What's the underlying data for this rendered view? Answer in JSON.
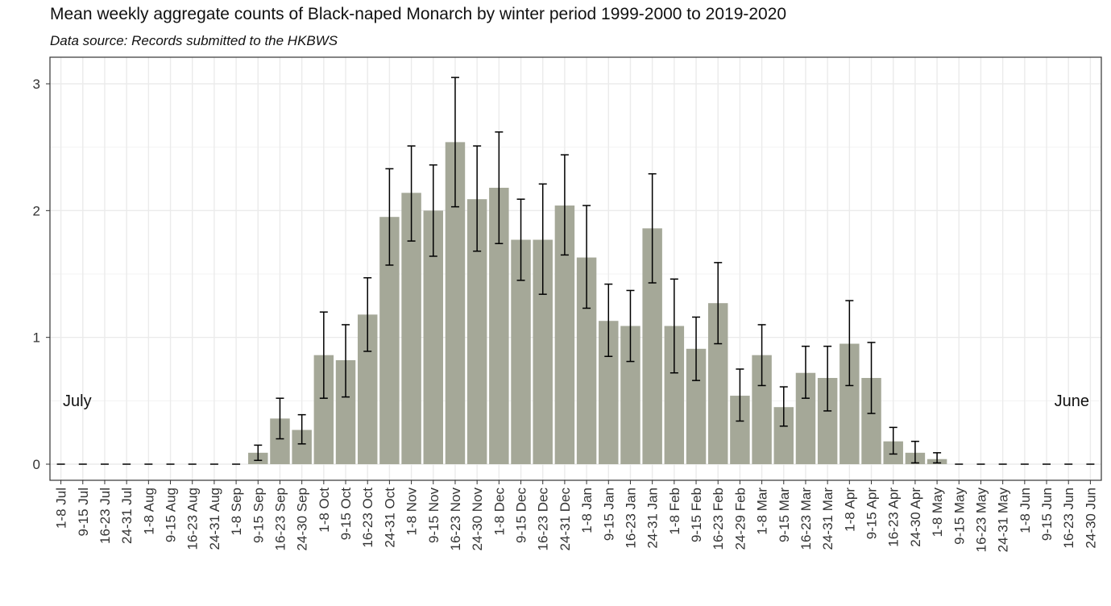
{
  "chart_data": {
    "type": "bar",
    "title": "Mean weekly aggregate counts of Black-naped Monarch by winter period 1999-2000 to 2019-2020",
    "subtitle": "Data source: Records submitted to the HKBWS",
    "xlabel": "",
    "ylabel": "",
    "ylim": [
      0,
      3.2
    ],
    "yticks": [
      0,
      1,
      2,
      3
    ],
    "grid": true,
    "categories": [
      "1-8 Jul",
      "9-15 Jul",
      "16-23 Jul",
      "24-31 Jul",
      "1-8 Aug",
      "9-15 Aug",
      "16-23 Aug",
      "24-31 Aug",
      "1-8 Sep",
      "9-15 Sep",
      "16-23 Sep",
      "24-30 Sep",
      "1-8 Oct",
      "9-15 Oct",
      "16-23 Oct",
      "24-31 Oct",
      "1-8 Nov",
      "9-15 Nov",
      "16-23 Nov",
      "24-30 Nov",
      "1-8 Dec",
      "9-15 Dec",
      "16-23 Dec",
      "24-31 Dec",
      "1-8 Jan",
      "9-15 Jan",
      "16-23 Jan",
      "24-31 Jan",
      "1-8 Feb",
      "9-15 Feb",
      "16-23 Feb",
      "24-29 Feb",
      "1-8 Mar",
      "9-15 Mar",
      "16-23 Mar",
      "24-31 Mar",
      "1-8 Apr",
      "9-15 Apr",
      "16-23 Apr",
      "24-30 Apr",
      "1-8 May",
      "9-15 May",
      "16-23 May",
      "24-31 May",
      "1-8 Jun",
      "9-15 Jun",
      "16-23 Jun",
      "24-30 Jun"
    ],
    "values": [
      0,
      0,
      0,
      0,
      0,
      0,
      0,
      0,
      0,
      0.09,
      0.36,
      0.27,
      0.86,
      0.82,
      1.18,
      1.95,
      2.14,
      2.0,
      2.54,
      2.09,
      2.18,
      1.77,
      1.77,
      2.04,
      1.63,
      1.13,
      1.09,
      1.86,
      1.09,
      0.91,
      1.27,
      0.54,
      0.86,
      0.45,
      0.72,
      0.68,
      0.95,
      0.68,
      0.18,
      0.09,
      0.04,
      0,
      0,
      0,
      0,
      0,
      0,
      0
    ],
    "error_low": [
      0,
      0,
      0,
      0,
      0,
      0,
      0,
      0,
      0,
      0.03,
      0.2,
      0.16,
      0.52,
      0.53,
      0.89,
      1.57,
      1.76,
      1.64,
      2.03,
      1.68,
      1.74,
      1.45,
      1.34,
      1.65,
      1.23,
      0.85,
      0.81,
      1.43,
      0.72,
      0.66,
      0.95,
      0.34,
      0.62,
      0.3,
      0.52,
      0.42,
      0.62,
      0.4,
      0.08,
      0.01,
      0.01,
      0,
      0,
      0,
      0,
      0,
      0,
      0
    ],
    "error_high": [
      0,
      0,
      0,
      0,
      0,
      0,
      0,
      0,
      0,
      0.15,
      0.52,
      0.39,
      1.2,
      1.1,
      1.47,
      2.33,
      2.51,
      2.36,
      3.05,
      2.51,
      2.62,
      2.09,
      2.21,
      2.44,
      2.04,
      1.42,
      1.37,
      2.29,
      1.46,
      1.16,
      1.59,
      0.75,
      1.1,
      0.61,
      0.93,
      0.93,
      1.29,
      0.96,
      0.29,
      0.18,
      0.09,
      0,
      0,
      0,
      0,
      0,
      0,
      0
    ],
    "annotations": [
      "July",
      "June"
    ],
    "colors": {
      "bar": "#a5a898",
      "error": "#000000",
      "grid": "#ebebeb",
      "border": "#333333"
    }
  }
}
